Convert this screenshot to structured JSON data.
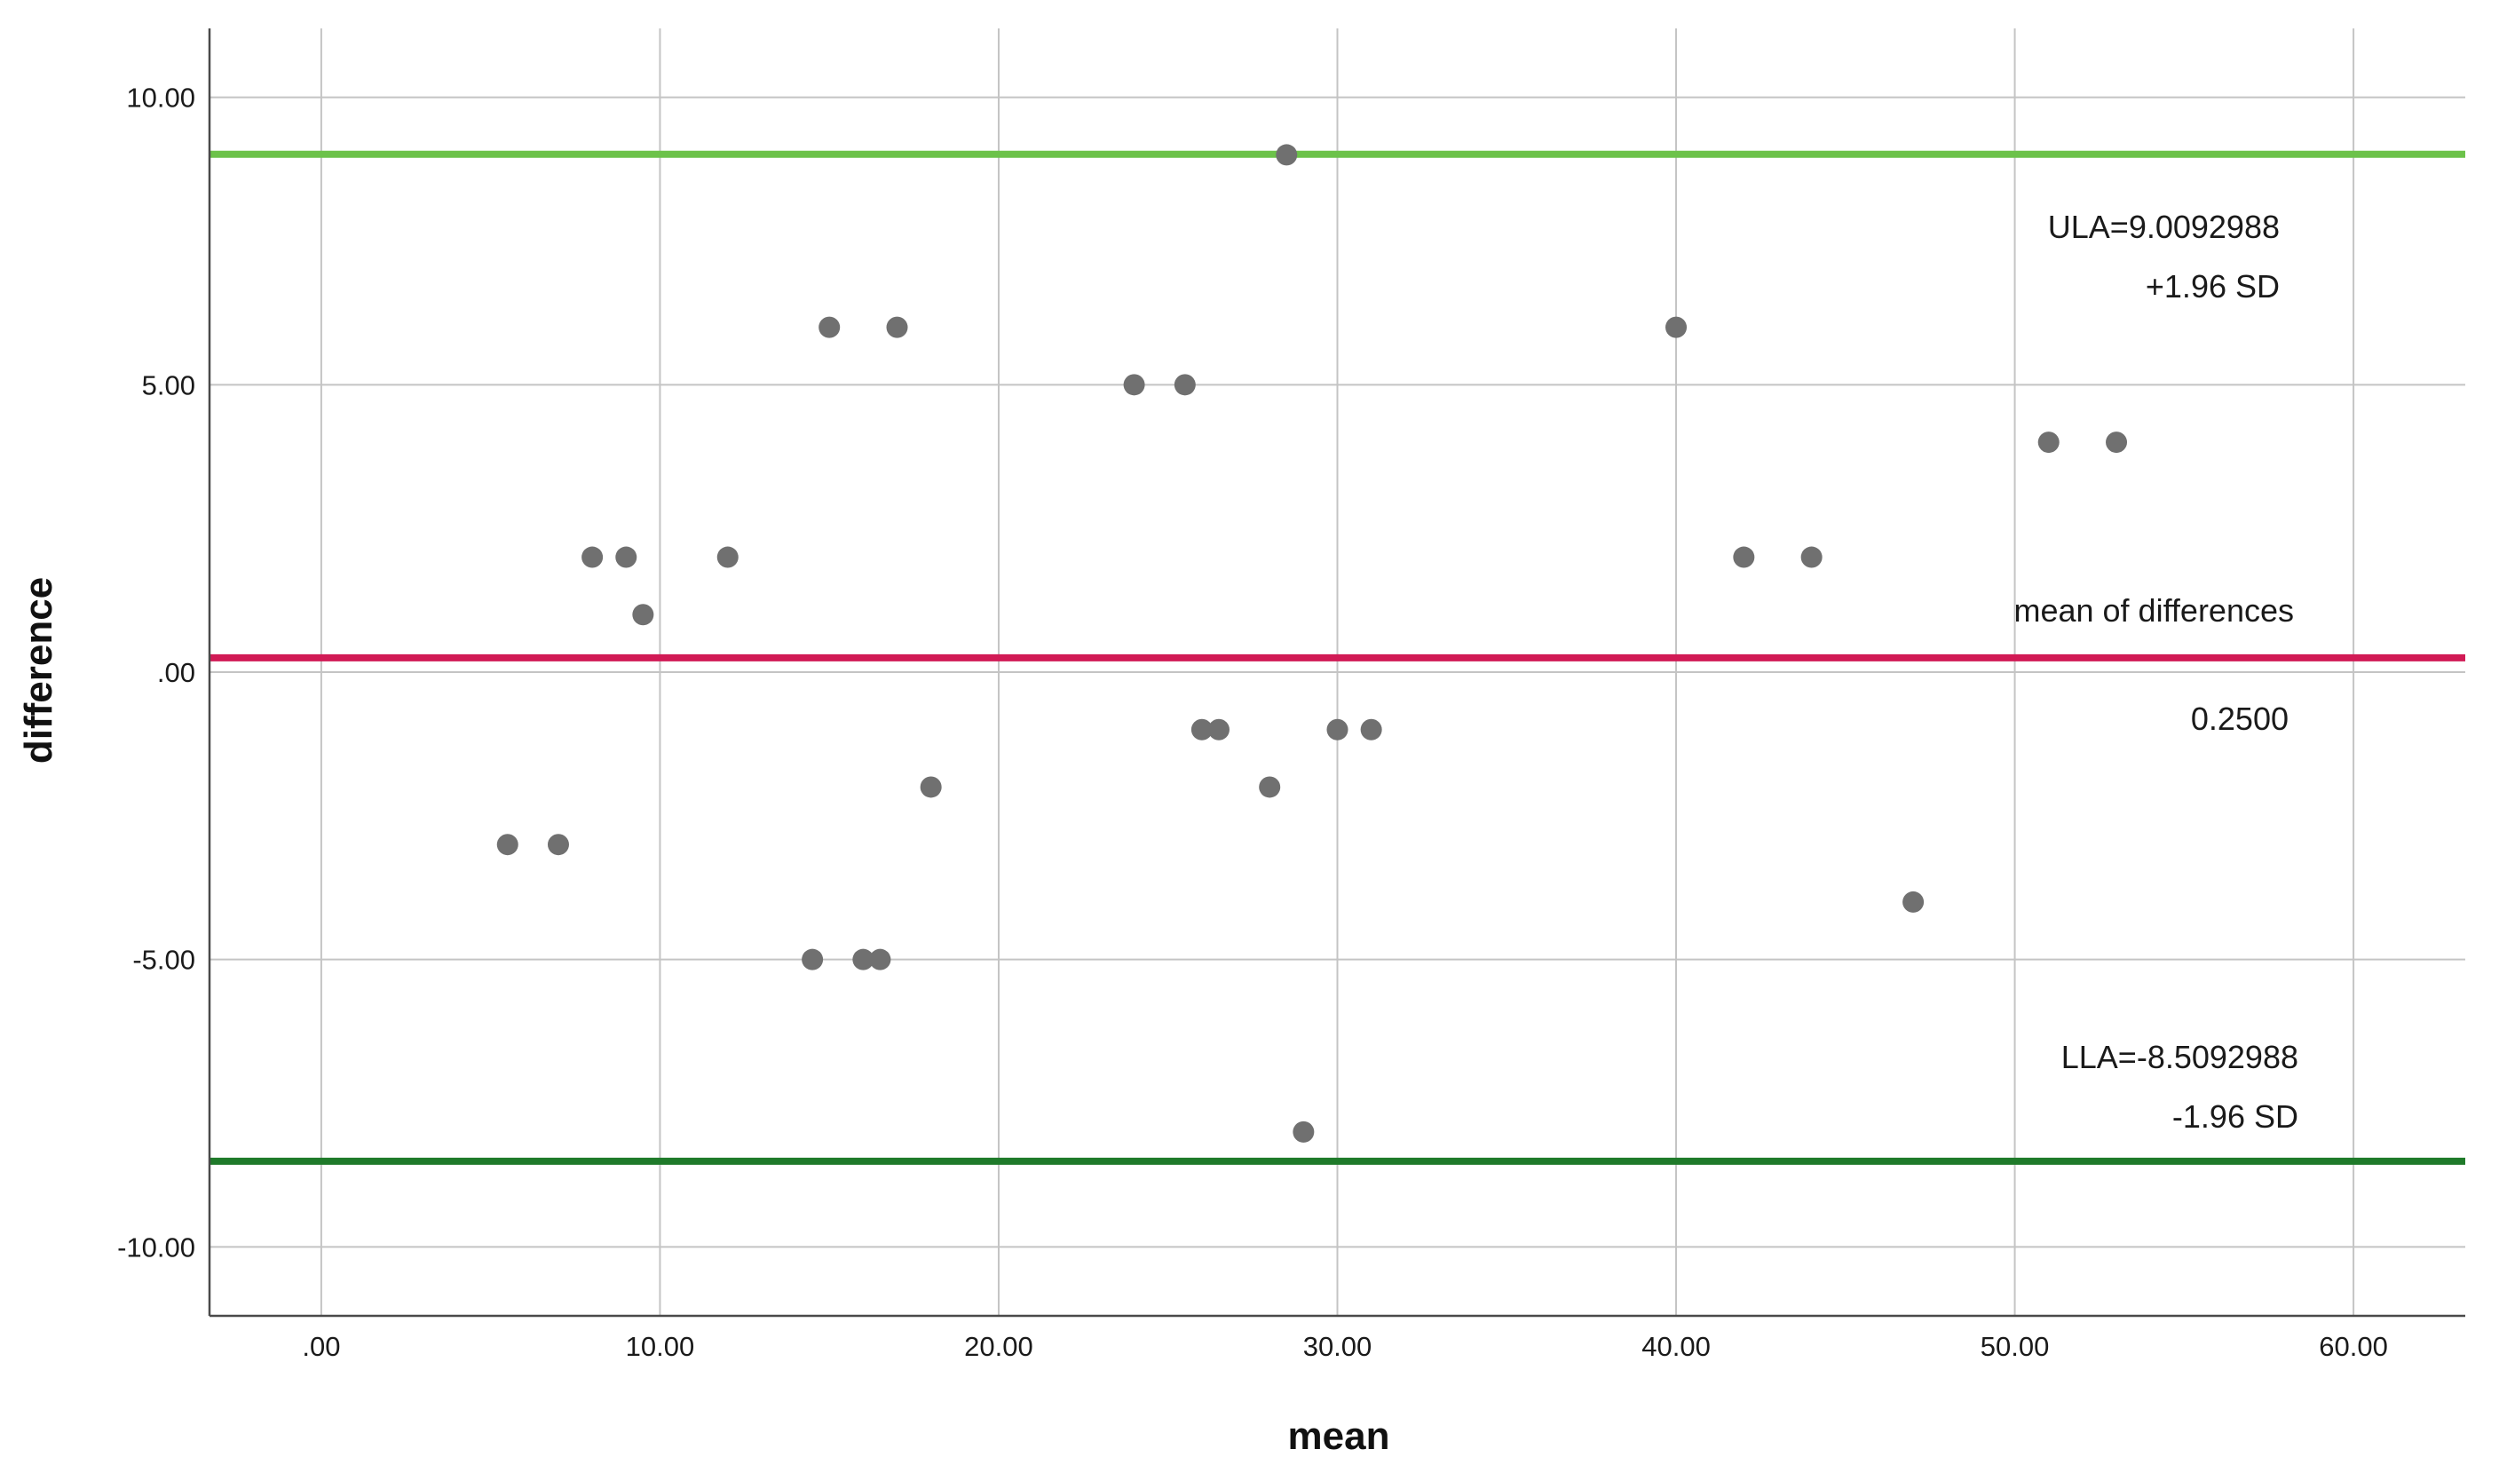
{
  "chart_data": {
    "type": "scatter",
    "title": "",
    "xlabel": "mean",
    "ylabel": "difference",
    "xlim": [
      -3.3,
      63.3
    ],
    "ylim": [
      -11.2,
      11.2
    ],
    "x_ticks": [
      0,
      10,
      20,
      30,
      40,
      50,
      60
    ],
    "x_tick_labels": [
      ".00",
      "10.00",
      "20.00",
      "30.00",
      "40.00",
      "50.00",
      "60.00"
    ],
    "y_ticks": [
      10,
      5,
      0,
      -5,
      -10
    ],
    "y_tick_labels": [
      "10.00",
      "5.00",
      ".00",
      "-5.00",
      "-10.00"
    ],
    "grid": true,
    "point_color": "#707070",
    "points": {
      "x": [
        5.5,
        7.0,
        8.0,
        9.0,
        9.5,
        12.0,
        14.5,
        15.0,
        16.0,
        16.5,
        17.0,
        18.0,
        24.0,
        25.5,
        26.0,
        26.5,
        28.0,
        28.5,
        29.0,
        30.0,
        31.0,
        40.0,
        42.0,
        44.0,
        47.0,
        51.0,
        53.0
      ],
      "y": [
        -3,
        -3,
        2,
        2,
        1,
        2,
        -5,
        6,
        -5,
        -5,
        6,
        -2,
        5,
        5,
        -1,
        -1,
        -2,
        9,
        -8,
        -1,
        -1,
        6,
        2,
        2,
        -4,
        4,
        4
      ]
    },
    "reference_lines": [
      {
        "y": 9.0092988,
        "color": "#6cc24a"
      },
      {
        "y": 0.25,
        "color": "#d11a55"
      },
      {
        "y": -8.5092988,
        "color": "#1f7a2a"
      }
    ],
    "annotations": {
      "ula_value": "ULA=9.0092988",
      "ula_sd": "+1.96 SD",
      "mean_label": "mean of differences",
      "mean_value": "0.2500",
      "lla_value": "LLA=-8.5092988",
      "lla_sd": "-1.96 SD"
    }
  }
}
